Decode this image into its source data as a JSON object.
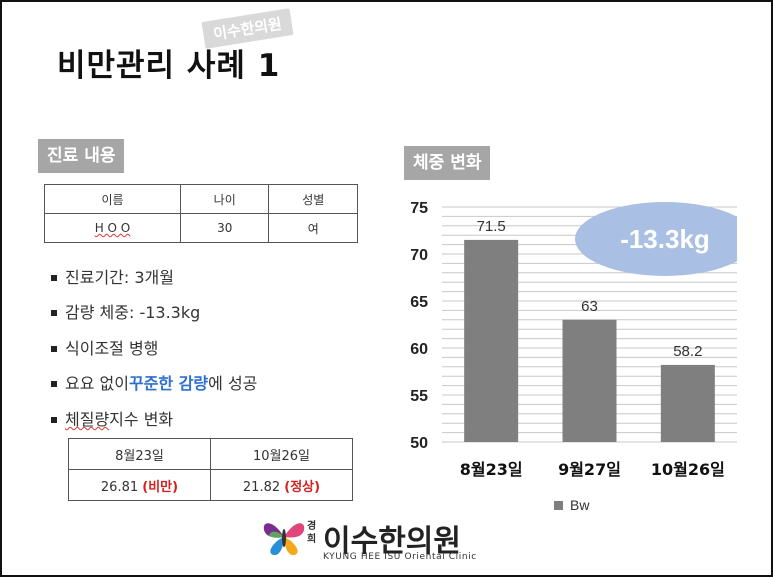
{
  "slide": {
    "title": "비만관리 사례 1",
    "watermark": "이수한의원"
  },
  "care": {
    "section_label": "진료 내용",
    "table": {
      "headers": [
        "이름",
        "나이",
        "성별"
      ],
      "row": [
        "H O O",
        "30",
        "여"
      ]
    },
    "bullets": {
      "b1": "진료기간: 3개월",
      "b2": "감량 체중: -13.3kg",
      "b3": "식이조절 병행",
      "b4_pre": "요요 없이 ",
      "b4_hl": "꾸준한 감량",
      "b4_post": "에 성공",
      "b5_a": "체질량",
      "b5_b": " 지수 변화"
    },
    "bmi_table": {
      "headers": [
        "8월23일",
        "10월26일"
      ],
      "values": [
        "26.81",
        "21.82"
      ],
      "status": [
        "(비만)",
        "(정상)"
      ]
    }
  },
  "weight": {
    "section_label": "체중 변화",
    "badge": "-13.3kg"
  },
  "chart_data": {
    "type": "bar",
    "categories": [
      "8월23일",
      "9월27일",
      "10월26일"
    ],
    "series": [
      {
        "name": "Bw",
        "values": [
          71.5,
          63,
          58.2
        ]
      }
    ],
    "ylim": [
      50,
      75
    ],
    "yticks": [
      50,
      55,
      60,
      65,
      70,
      75
    ],
    "grid": true,
    "legend": "bottom",
    "bar_color": "#7f7f7f",
    "annotation": "-13.3kg"
  },
  "logo": {
    "prefix": "경희",
    "name": "이수한의원",
    "subtitle": "KYUNG HEE ISU Oriental Clinic"
  },
  "colors": {
    "accent_blue": "#2e6fd0",
    "status_red": "#d41f1f",
    "label_gray": "#a6a6a6",
    "bubble": "#a9bfe3"
  }
}
